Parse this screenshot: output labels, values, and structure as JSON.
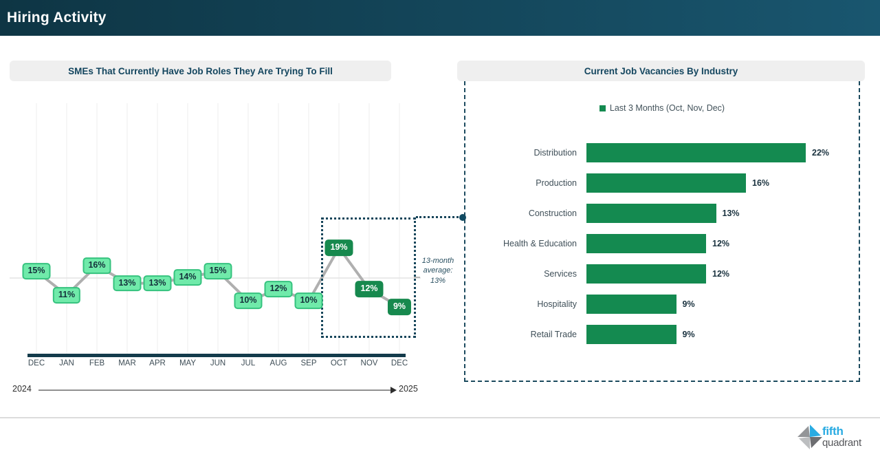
{
  "header": {
    "title": "Hiring Activity"
  },
  "colors": {
    "header_gradient_left": "#0e3544",
    "header_gradient_right": "#19566f",
    "accent_teal": "#16455a",
    "line_color": "#afafaf",
    "axis_bar_color": "#133b4b",
    "grid_color": "#ededed"
  },
  "chart_data": [
    {
      "id": "sme-roles-to-fill",
      "type": "line",
      "title": "SMEs That Currently Have Job Roles They Are Trying To Fill",
      "x": [
        "DEC",
        "JAN",
        "FEB",
        "MAR",
        "APR",
        "MAY",
        "JUN",
        "JUL",
        "AUG",
        "SEP",
        "OCT",
        "NOV",
        "DEC"
      ],
      "values": [
        15,
        11,
        16,
        13,
        13,
        14,
        15,
        10,
        12,
        10,
        19,
        12,
        9
      ],
      "value_suffix": "%",
      "ylim": [
        0,
        48
      ],
      "grid": "vertical-per-month",
      "highlight_last_n": 3,
      "annotation": "13-month average: 13%",
      "x_axis_years": {
        "start": "2024",
        "end": "2025"
      },
      "label_colors": {
        "normal_bg": "#70eaaa",
        "normal_border": "#35c27e",
        "normal_text": "#14313b",
        "highlight_bg": "#17894e",
        "highlight_text": "#ffffff"
      }
    },
    {
      "id": "vacancies-by-industry",
      "type": "bar",
      "title": "Current Job Vacancies By Industry",
      "legend": "Last 3 Months (Oct, Nov, Dec)",
      "legend_position": "top-center",
      "orientation": "horizontal",
      "categories": [
        "Distribution",
        "Production",
        "Construction",
        "Health & Education",
        "Services",
        "Hospitality",
        "Retail Trade"
      ],
      "values": [
        22,
        16,
        13,
        12,
        12,
        9,
        9
      ],
      "value_suffix": "%",
      "bar_color": "#148a50"
    }
  ],
  "footer": {
    "brand_line1": "fifth",
    "brand_line2": "quadrant"
  }
}
